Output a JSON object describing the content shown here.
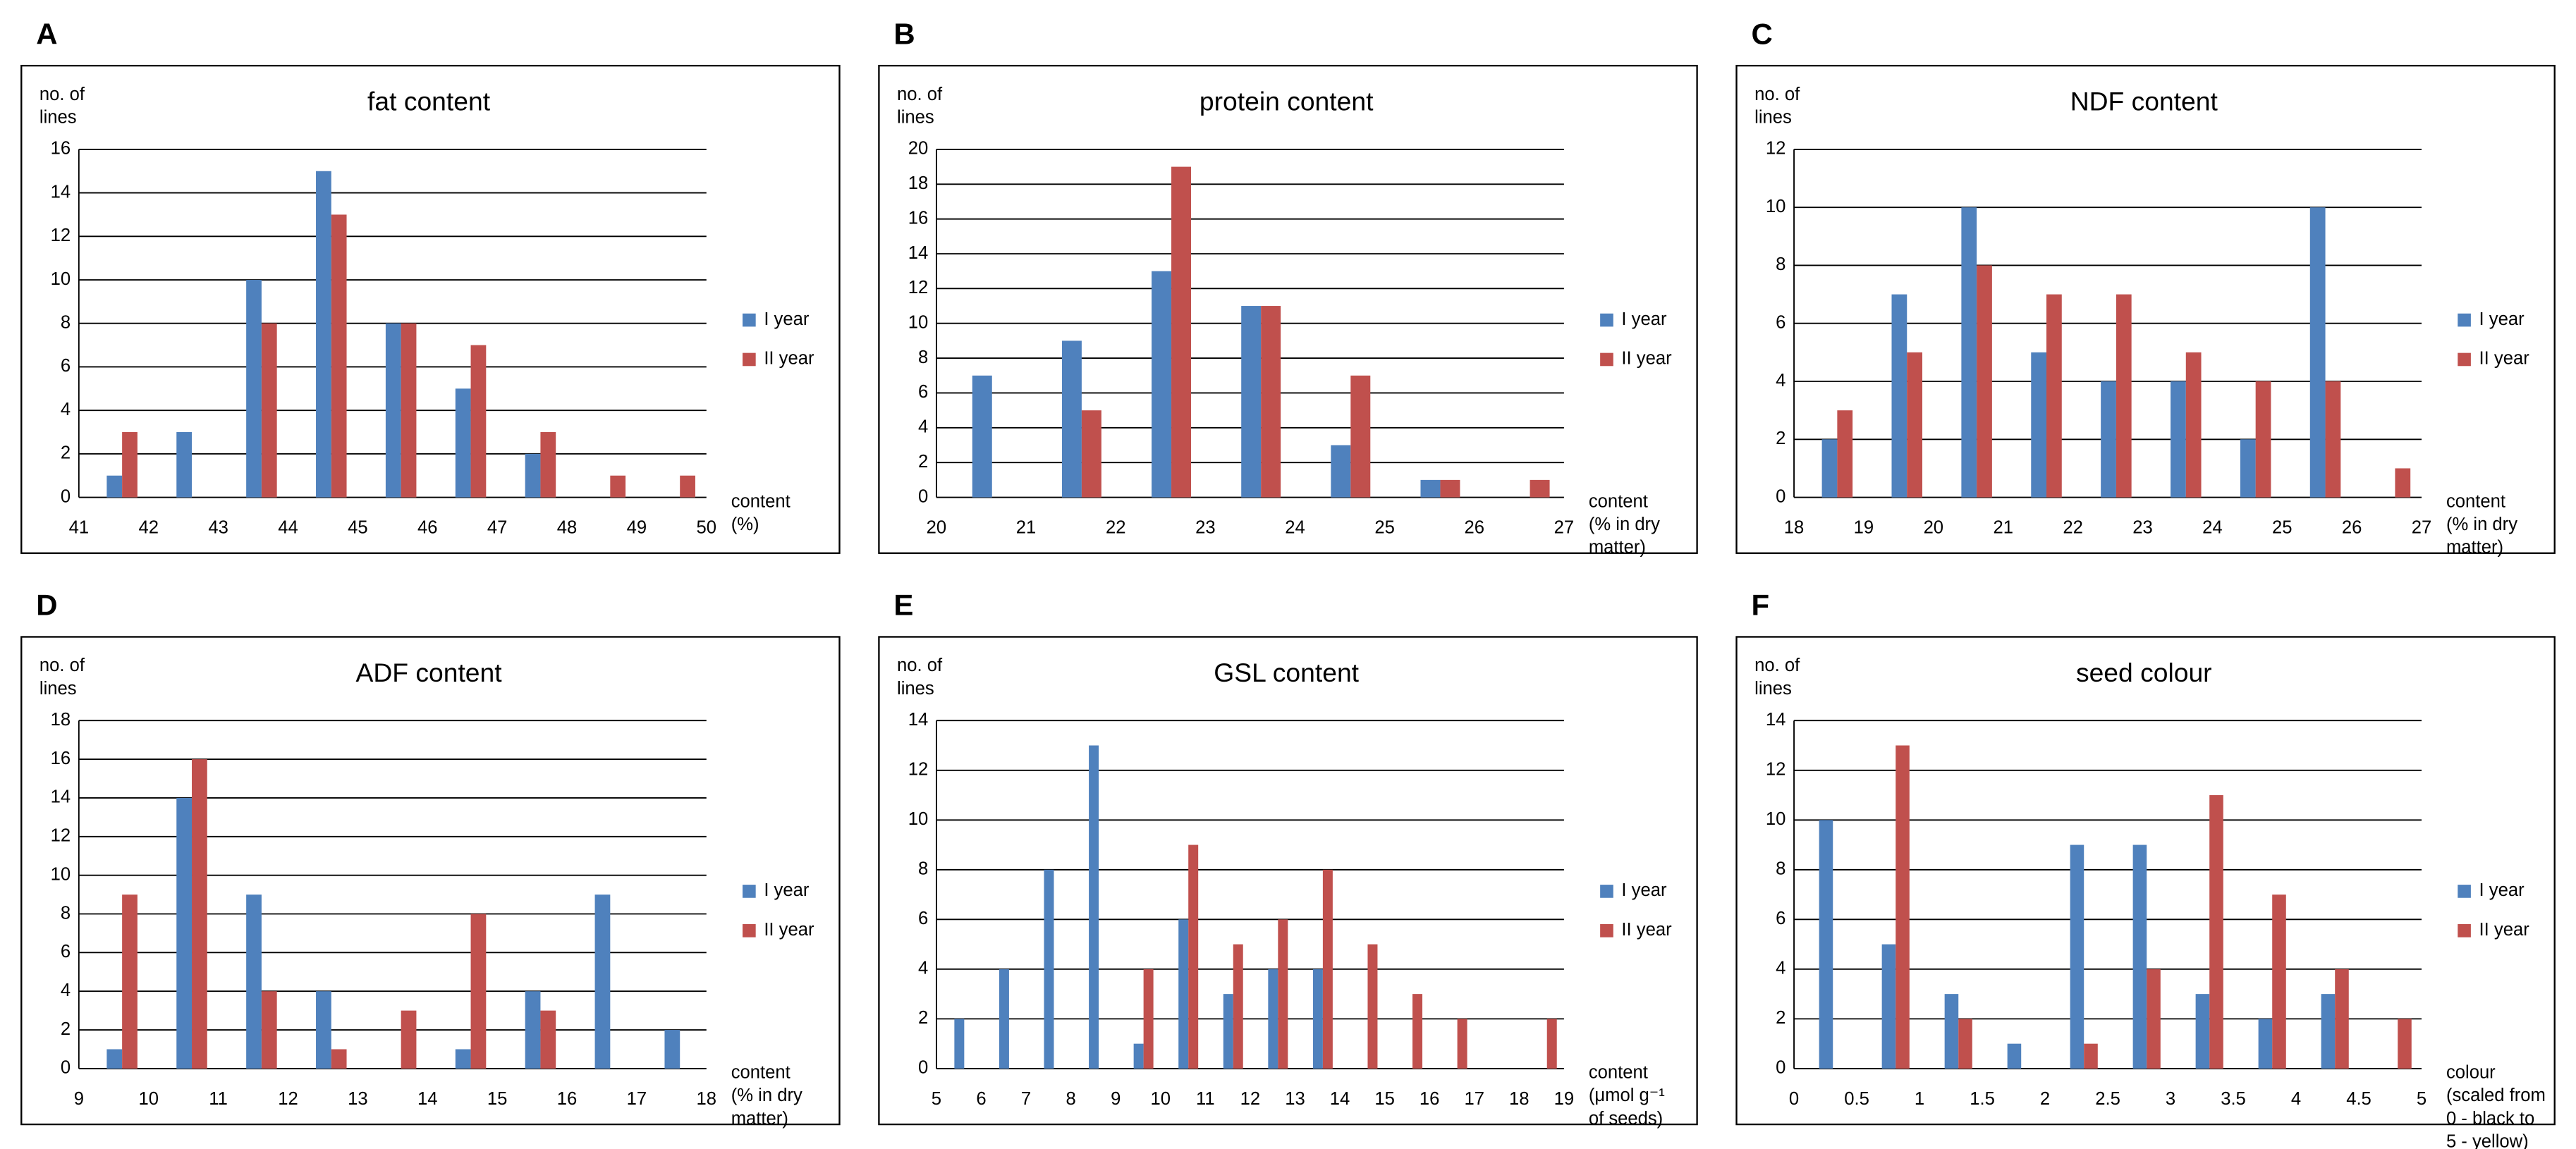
{
  "chart_data": [
    {
      "panel": "A",
      "type": "histogram",
      "title": "fat content",
      "y_label": [
        "no. of",
        "lines"
      ],
      "x_label": [
        "content",
        "(%)"
      ],
      "bins": [
        41,
        42,
        43,
        44,
        45,
        46,
        47,
        48,
        49,
        50
      ],
      "series": [
        {
          "name": "I year",
          "color": "#4f81bd",
          "values": [
            1,
            3,
            10,
            15,
            8,
            5,
            2,
            0,
            0
          ]
        },
        {
          "name": "II year",
          "color": "#c0504d",
          "values": [
            3,
            0,
            8,
            13,
            8,
            7,
            3,
            1,
            1
          ]
        }
      ],
      "ylim": [
        0,
        16
      ],
      "yticks": [
        0,
        2,
        4,
        6,
        8,
        10,
        12,
        14,
        16
      ],
      "grid": true,
      "legend": "right"
    },
    {
      "panel": "B",
      "type": "histogram",
      "title": "protein content",
      "y_label": [
        "no. of",
        "lines"
      ],
      "x_label": [
        "content",
        "(% in dry",
        "matter)"
      ],
      "bins": [
        20,
        21,
        22,
        23,
        24,
        25,
        26,
        27
      ],
      "series": [
        {
          "name": "I year",
          "color": "#4f81bd",
          "values": [
            7,
            9,
            13,
            11,
            3,
            1,
            0
          ]
        },
        {
          "name": "II year",
          "color": "#c0504d",
          "values": [
            0,
            5,
            19,
            11,
            7,
            1,
            1
          ]
        }
      ],
      "ylim": [
        0,
        20
      ],
      "yticks": [
        0,
        2,
        4,
        6,
        8,
        10,
        12,
        14,
        16,
        18,
        20
      ],
      "grid": true,
      "legend": "right"
    },
    {
      "panel": "C",
      "type": "histogram",
      "title": "NDF content",
      "y_label": [
        "no. of",
        "lines"
      ],
      "x_label": [
        "content",
        "(% in dry",
        "matter)"
      ],
      "bins": [
        18,
        19,
        20,
        21,
        22,
        23,
        24,
        25,
        26,
        27
      ],
      "series": [
        {
          "name": "I year",
          "color": "#4f81bd",
          "values": [
            2,
            7,
            10,
            5,
            4,
            4,
            2,
            10,
            0
          ]
        },
        {
          "name": "II year",
          "color": "#c0504d",
          "values": [
            3,
            5,
            8,
            7,
            7,
            5,
            4,
            4,
            1
          ]
        }
      ],
      "ylim": [
        0,
        12
      ],
      "yticks": [
        0,
        2,
        4,
        6,
        8,
        10,
        12
      ],
      "grid": true,
      "legend": "right"
    },
    {
      "panel": "D",
      "type": "histogram",
      "title": "ADF content",
      "y_label": [
        "no. of",
        "lines"
      ],
      "x_label": [
        "content",
        "(% in dry",
        "matter)"
      ],
      "bins": [
        9,
        10,
        11,
        12,
        13,
        14,
        15,
        16,
        17,
        18
      ],
      "series": [
        {
          "name": "I year",
          "color": "#4f81bd",
          "values": [
            1,
            14,
            9,
            4,
            0,
            1,
            4,
            9,
            2
          ]
        },
        {
          "name": "II year",
          "color": "#c0504d",
          "values": [
            9,
            16,
            4,
            1,
            3,
            8,
            3,
            0,
            0
          ]
        }
      ],
      "ylim": [
        0,
        18
      ],
      "yticks": [
        0,
        2,
        4,
        6,
        8,
        10,
        12,
        14,
        16,
        18
      ],
      "grid": true,
      "legend": "right"
    },
    {
      "panel": "E",
      "type": "histogram",
      "title": "GSL content",
      "y_label": [
        "no. of",
        "lines"
      ],
      "x_label": [
        "content",
        "(μmol g⁻¹",
        "of seeds)"
      ],
      "bins": [
        5,
        6,
        7,
        8,
        9,
        10,
        11,
        12,
        13,
        14,
        15,
        16,
        17,
        18,
        19
      ],
      "series": [
        {
          "name": "I year",
          "color": "#4f81bd",
          "values": [
            2,
            4,
            8,
            13,
            1,
            6,
            3,
            4,
            4,
            0,
            0,
            0,
            0,
            0
          ]
        },
        {
          "name": "II year",
          "color": "#c0504d",
          "values": [
            0,
            0,
            0,
            0,
            4,
            9,
            5,
            6,
            8,
            5,
            3,
            2,
            0,
            2
          ]
        }
      ],
      "ylim": [
        0,
        14
      ],
      "yticks": [
        0,
        2,
        4,
        6,
        8,
        10,
        12,
        14
      ],
      "grid": true,
      "legend": "right"
    },
    {
      "panel": "F",
      "type": "histogram",
      "title": "seed colour",
      "y_label": [
        "no. of",
        "lines"
      ],
      "x_label": [
        "colour",
        "(scaled from",
        "0 - black to",
        "5 - yellow)"
      ],
      "bins": [
        0,
        0.5,
        1,
        1.5,
        2,
        2.5,
        3,
        3.5,
        4,
        4.5,
        5
      ],
      "series": [
        {
          "name": "I year",
          "color": "#4f81bd",
          "values": [
            10,
            5,
            3,
            1,
            9,
            9,
            3,
            2,
            3,
            0
          ]
        },
        {
          "name": "II year",
          "color": "#c0504d",
          "values": [
            0,
            13,
            2,
            0,
            1,
            4,
            11,
            7,
            4,
            2
          ]
        }
      ],
      "ylim": [
        0,
        14
      ],
      "yticks": [
        0,
        2,
        4,
        6,
        8,
        10,
        12,
        14
      ],
      "grid": true,
      "legend": "right"
    }
  ]
}
